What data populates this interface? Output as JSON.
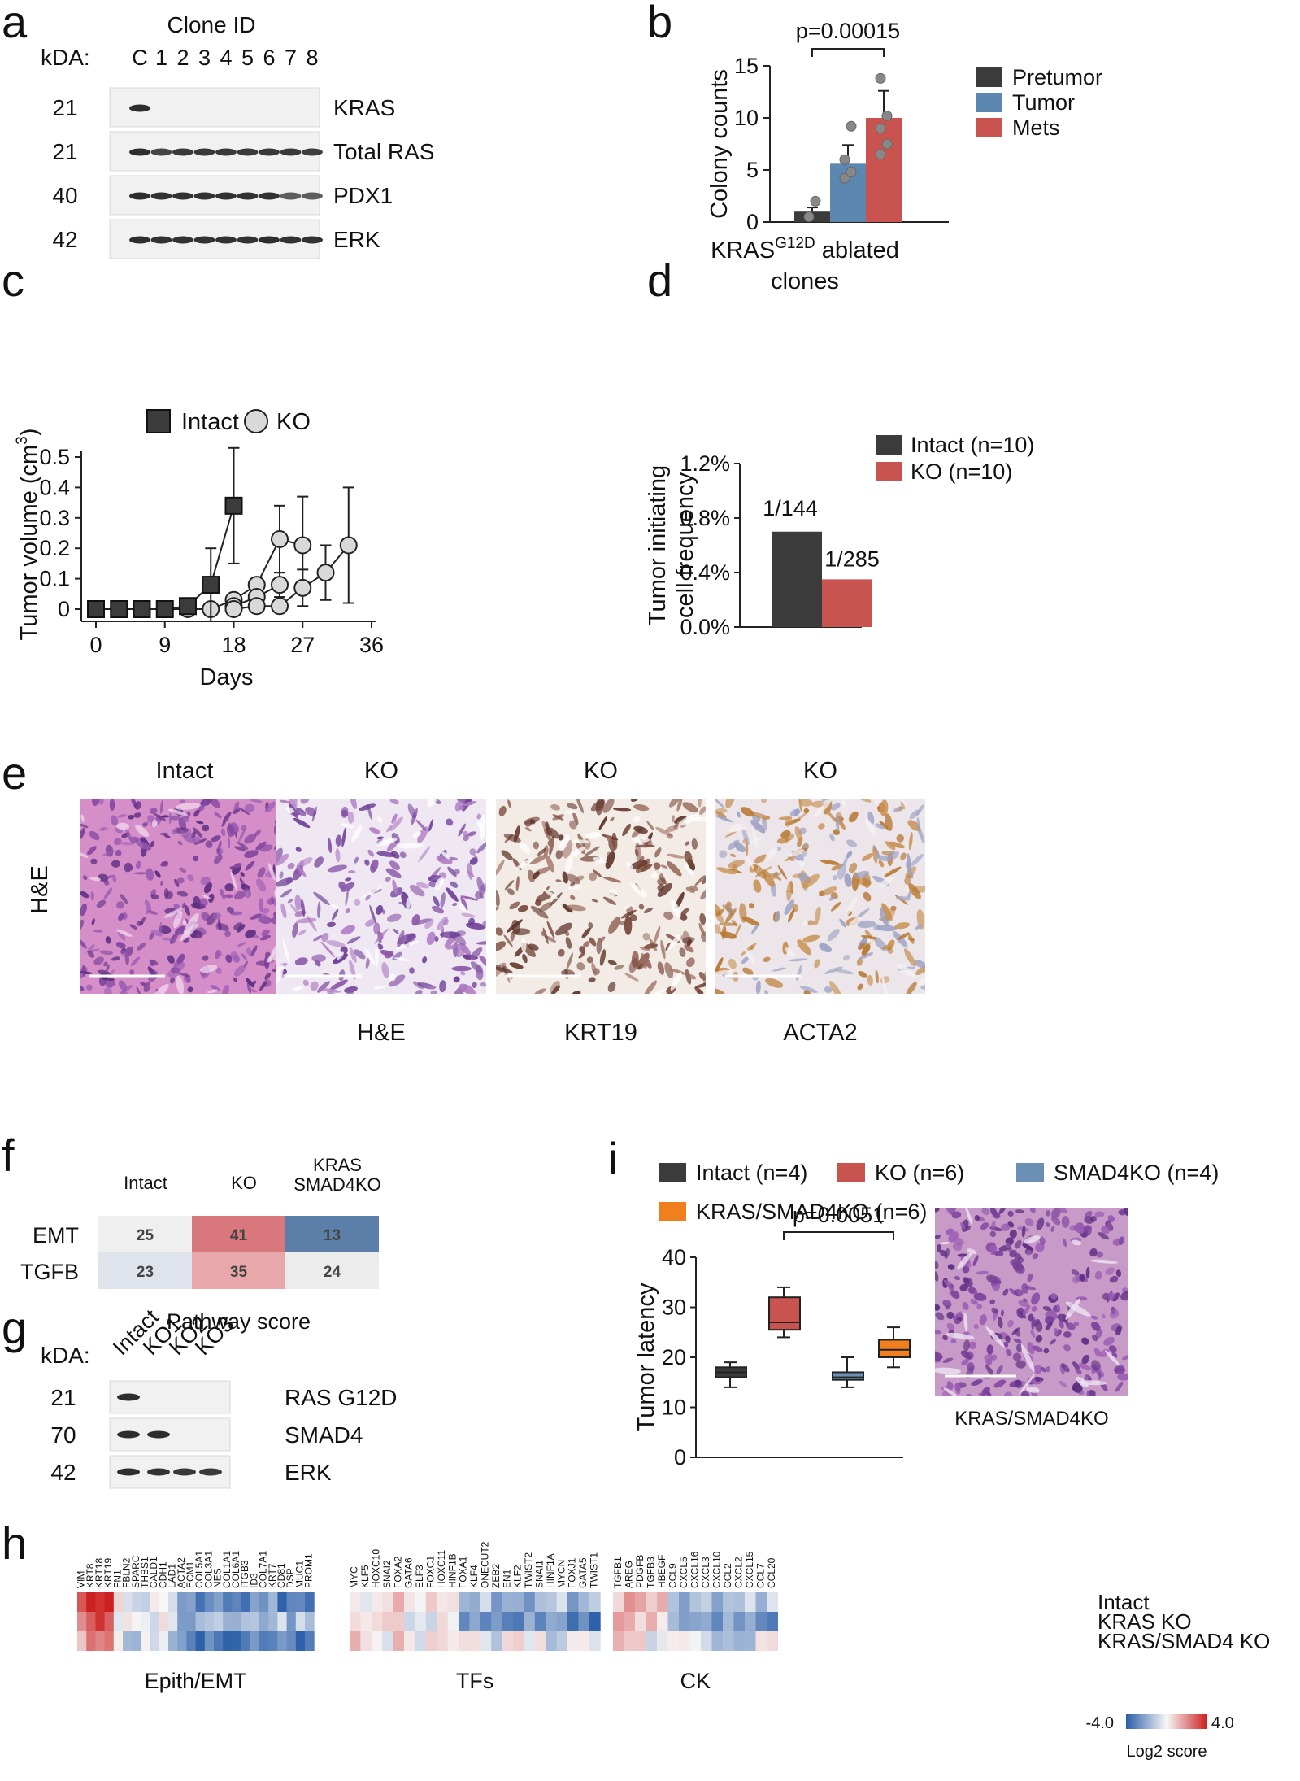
{
  "panel_letters": {
    "a": "a",
    "b": "b",
    "c": "c",
    "d": "d",
    "e": "e",
    "f": "f",
    "g": "g",
    "h": "h",
    "i": "i"
  },
  "panel_a": {
    "title": "Clone ID",
    "kda_label": "kDA:",
    "lanes": [
      "C",
      "1",
      "2",
      "3",
      "4",
      "5",
      "6",
      "7",
      "8"
    ],
    "rows": [
      {
        "kda": "21",
        "name": "KRAS",
        "bands": [
          1,
          0,
          0,
          0,
          0,
          0,
          0,
          0,
          0
        ]
      },
      {
        "kda": "21",
        "name": "Total RAS",
        "bands": [
          1,
          0.8,
          0.9,
          0.9,
          0.9,
          0.9,
          0.9,
          0.9,
          0.85
        ]
      },
      {
        "kda": "40",
        "name": "PDX1",
        "bands": [
          1,
          0.95,
          0.95,
          0.95,
          0.95,
          0.95,
          0.95,
          0.6,
          0.6
        ]
      },
      {
        "kda": "42",
        "name": "ERK",
        "bands": [
          1,
          0.95,
          0.95,
          0.95,
          0.95,
          0.95,
          1,
          0.95,
          0.95
        ]
      }
    ]
  },
  "panel_b": {
    "p_value": "p=0.00015",
    "xlabel_main": "KRAS",
    "xlabel_sup": "G12D",
    "xlabel_rest": " ablated",
    "xlabel_line2": "clones",
    "legend": [
      {
        "name": "Pretumor",
        "color": "#3b3b3b"
      },
      {
        "name": "Tumor",
        "color": "#5b87b0"
      },
      {
        "name": "Mets",
        "color": "#c9544f"
      }
    ]
  },
  "panel_c": {
    "legend": [
      {
        "name": "Intact"
      },
      {
        "name": "KO"
      }
    ]
  },
  "panel_d": {
    "legend": [
      {
        "name": "Intact (n=10)",
        "color": "#3b3b3b"
      },
      {
        "name": "KO (n=10)",
        "color": "#c9544f"
      }
    ]
  },
  "panel_e": {
    "ylabel": "H&E",
    "columns": [
      {
        "top": "Intact",
        "bottom": "",
        "style": "he_dense"
      },
      {
        "top": "KO",
        "bottom": "H&E",
        "style": "he_loose"
      },
      {
        "top": "KO",
        "bottom": "KRT19",
        "style": "krt19"
      },
      {
        "top": "KO",
        "bottom": "ACTA2",
        "style": "acta2"
      }
    ]
  },
  "panel_f": {
    "columns": [
      "Intact",
      "KO",
      "KRAS\nSMAD4KO"
    ],
    "column_lines": [
      [
        "Intact"
      ],
      [
        "KO"
      ],
      [
        "KRAS",
        "SMAD4KO"
      ]
    ],
    "rows": [
      {
        "name": "EMT",
        "values": [
          "25",
          "41",
          "13"
        ],
        "colors": [
          "#efefef",
          "#d9787c",
          "#5b7fa8"
        ]
      },
      {
        "name": "TGFB",
        "values": [
          "23",
          "35",
          "24"
        ],
        "colors": [
          "#dfe3ec",
          "#e8a7a8",
          "#ececec"
        ]
      }
    ],
    "caption": "Pathway score"
  },
  "panel_g": {
    "kda_label": "kDA:",
    "lanes": [
      "Intact",
      "KO1",
      "KO2",
      "KO3"
    ],
    "rows": [
      {
        "kda": "21",
        "name": "RAS G12D",
        "bands": [
          1,
          0,
          0,
          0
        ]
      },
      {
        "kda": "70",
        "name": "SMAD4",
        "bands": [
          1,
          1,
          0,
          0
        ]
      },
      {
        "kda": "42",
        "name": "ERK",
        "bands": [
          1,
          0.95,
          0.9,
          0.9
        ]
      }
    ]
  },
  "panel_i": {
    "legend": [
      {
        "name": "Intact (n=4)",
        "color": "#3b3b3b"
      },
      {
        "name": "KO (n=6)",
        "color": "#c9544f"
      },
      {
        "name": "SMAD4KO (n=4)",
        "color": "#6a8fb5"
      },
      {
        "name": "KRAS/SMAD4KO (n=6)",
        "color": "#f07f1e"
      }
    ],
    "p_value": "p=0.0051",
    "image_caption": "KRAS/SMAD4KO"
  },
  "panel_h": {
    "groups": [
      {
        "name": "Epith/EMT",
        "genes": [
          "VIM",
          "KRT8",
          "KRT18",
          "KRT19",
          "FN1",
          "FBLN2",
          "SPARC",
          "THBS1",
          "CALD1",
          "CDH1",
          "LAD1",
          "ACTA2",
          "ECM1",
          "COL5A1",
          "COL3A1",
          "NES",
          "COL1A1",
          "COL6A1",
          "ITGB3",
          "ID3",
          "COL7A1",
          "KRT7",
          "CD81",
          "DSP",
          "MUC1",
          "PROM1"
        ]
      },
      {
        "name": "TFs",
        "genes": [
          "MYC",
          "KLF5",
          "HOXC10",
          "SNAI2",
          "FOXA2",
          "GATA6",
          "ELF3",
          "FOXC1",
          "HOXC11",
          "HINF1B",
          "FOXA1",
          "KLF4",
          "ONECUT2",
          "ZEB2",
          "EN1",
          "KLF2",
          "TWIST2",
          "SNAI1",
          "HINF1A",
          "MYCN",
          "FOXJ1",
          "GATA5",
          "TWIST1"
        ]
      },
      {
        "name": "CK",
        "genes": [
          "TGFB1",
          "AREG",
          "PDGFB",
          "TGFB3",
          "HBEGF",
          "CCL9",
          "CXCL5",
          "CXCL16",
          "CXCL3",
          "CXCL10",
          "CCL2",
          "CXCL2",
          "CXCL15",
          "CCL7",
          "CCL20"
        ]
      }
    ],
    "rows": [
      "Intact",
      "KRAS KO",
      "KRAS/SMAD4 KO"
    ],
    "scale_min": "-4.0",
    "scale_max": "4.0",
    "scale_label": "Log2 score",
    "colors": {
      "neg": "#2a5ea8",
      "mid": "#f7f7f7",
      "pos": "#cc1f1f"
    }
  },
  "chart_data": [
    {
      "type": "bar",
      "panel": "b",
      "categories": [
        "Pretumor",
        "Tumor",
        "Mets"
      ],
      "values": [
        1.0,
        5.6,
        10.0
      ],
      "errors": [
        0.4,
        1.8,
        2.6
      ],
      "points": [
        [
          0.5,
          2.0
        ],
        [
          4.2,
          4.8,
          6.0,
          9.2
        ],
        [
          6.5,
          7.5,
          9.0,
          10.2,
          13.8
        ]
      ],
      "ylabel": "Colony counts",
      "ylim": [
        0,
        15
      ],
      "yticks": [
        "0",
        "5",
        "10",
        "15"
      ],
      "colors": [
        "#3b3b3b",
        "#5b87b0",
        "#c9544f"
      ]
    },
    {
      "type": "line",
      "panel": "c",
      "xlabel": "Days",
      "ylabel_main": "Tumor volume (cm",
      "ylabel_sup": "3",
      "ylabel_end": ")",
      "xlim": [
        0,
        36
      ],
      "ylim": [
        0,
        0.5
      ],
      "xticks": [
        "0",
        "9",
        "18",
        "27",
        "36"
      ],
      "yticks": [
        "0",
        "0.1",
        "0.2",
        "0.3",
        "0.4",
        "0.5"
      ],
      "series": [
        {
          "name": "Intact",
          "marker": "square",
          "x": [
            0,
            3,
            6,
            9,
            12,
            15,
            18
          ],
          "y": [
            0,
            0,
            0,
            0,
            0.01,
            0.08,
            0.34
          ],
          "err": [
            0,
            0,
            0,
            0,
            0,
            0.12,
            0.19
          ]
        },
        {
          "name": "KO",
          "marker": "circle",
          "x": [
            0,
            3,
            6,
            9,
            12,
            15,
            18,
            21,
            24,
            27
          ],
          "y": [
            0,
            0,
            0,
            0,
            0,
            0,
            0.03,
            0.08,
            0.23,
            0.21
          ],
          "err": [
            0,
            0,
            0,
            0,
            0,
            0,
            0,
            0.02,
            0.11,
            0.16
          ]
        },
        {
          "name": "KO",
          "marker": "circle",
          "x": [
            18,
            21,
            24
          ],
          "y": [
            0.01,
            0.04,
            0.08
          ],
          "err": [
            0,
            0,
            0.04
          ]
        },
        {
          "name": "KO",
          "marker": "circle",
          "x": [
            18,
            21,
            24,
            27,
            30,
            33
          ],
          "y": [
            0,
            0.01,
            0.01,
            0.07,
            0.12,
            0.21
          ],
          "err": [
            0,
            0,
            0,
            0.06,
            0.09,
            0.19
          ]
        }
      ]
    },
    {
      "type": "bar",
      "panel": "d",
      "categories": [
        "Intact (n=10)",
        "KO (n=10)"
      ],
      "values": [
        0.7,
        0.35
      ],
      "data_labels": [
        "1/144",
        "1/285"
      ],
      "ylabel_line1": "Tumor initiating",
      "ylabel_line2": "cell frequency",
      "ylim": [
        0,
        1.2
      ],
      "yticks": [
        "0.0%",
        "0.4%",
        "0.8%",
        "1.2%"
      ],
      "colors": [
        "#3b3b3b",
        "#c9544f"
      ]
    },
    {
      "type": "box",
      "panel": "i",
      "categories": [
        "Intact (n=4)",
        "KO (n=6)",
        "SMAD4KO (n=4)",
        "KRAS/SMAD4KO (n=6)"
      ],
      "boxes": [
        {
          "min": 14,
          "q1": 16,
          "median": 17,
          "q3": 18,
          "max": 19
        },
        {
          "min": 24,
          "q1": 25.5,
          "median": 27,
          "q3": 32,
          "max": 34
        },
        {
          "min": 14,
          "q1": 15.5,
          "median": 16,
          "q3": 17,
          "max": 20
        },
        {
          "min": 18,
          "q1": 20,
          "median": 21.5,
          "q3": 23.5,
          "max": 26
        }
      ],
      "ylabel": "Tumor latency",
      "ylim": [
        0,
        40
      ],
      "yticks": [
        "0",
        "10",
        "20",
        "30",
        "40"
      ],
      "colors": [
        "#3b3b3b",
        "#c9544f",
        "#6a8fb5",
        "#f07f1e"
      ]
    }
  ]
}
